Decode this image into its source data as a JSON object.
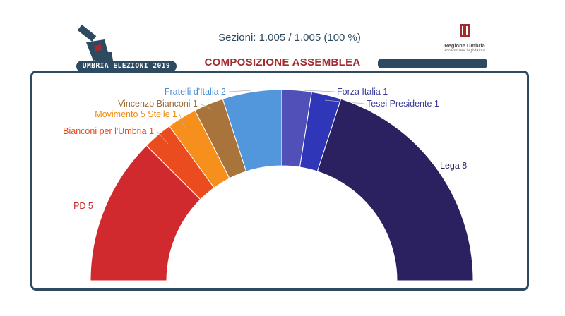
{
  "header": {
    "logo_text": "UMBRIA ELEZIONI 2019",
    "sezioni": "Sezioni: 1.005 / 1.005  (100 %)",
    "title": "COMPOSIZIONE ASSEMBLEA",
    "region_name": "Regione Umbria",
    "region_sub": "Assemblea legislativa"
  },
  "colors": {
    "frame": "#2d4a60",
    "title": "#a32a2e"
  },
  "chart_data": {
    "type": "pie",
    "subtype": "parliament semicircle",
    "total_seats": 20,
    "series": [
      {
        "name": "PD",
        "label": "PD 5",
        "value": 5,
        "color": "#d02a2e",
        "label_color": "#c8282c"
      },
      {
        "name": "Bianconi per l'Umbria",
        "label": "Bianconi per l'Umbria 1",
        "value": 1,
        "color": "#ea4c1f",
        "label_color": "#e2491b"
      },
      {
        "name": "Movimento 5 Stelle",
        "label": "Movimento 5 Stelle 1",
        "value": 1,
        "color": "#f68f1c",
        "label_color": "#f08a12"
      },
      {
        "name": "Vincenzo Bianconi",
        "label": "Vincenzo Bianconi 1",
        "value": 1,
        "color": "#a8743c",
        "label_color": "#9c6a33"
      },
      {
        "name": "Fratelli d'Italia",
        "label": "Fratelli d'Italia 2",
        "value": 2,
        "color": "#5297dc",
        "label_color": "#4c8fd6"
      },
      {
        "name": "Forza Italia",
        "label": "Forza Italia 1",
        "value": 1,
        "color": "#5050b8",
        "label_color": "#3c3c9a"
      },
      {
        "name": "Tesei Presidente",
        "label": "Tesei Presidente 1",
        "value": 1,
        "color": "#2f37b8",
        "label_color": "#3c3c9a"
      },
      {
        "name": "Lega",
        "label": "Lega 8",
        "value": 8,
        "color": "#2b2060",
        "label_color": "#2b2060"
      }
    ]
  }
}
